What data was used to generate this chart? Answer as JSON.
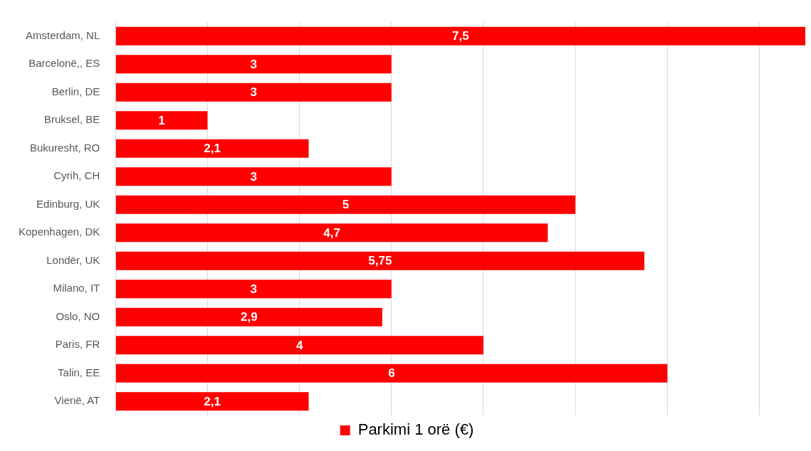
{
  "chart_data": {
    "type": "bar",
    "orientation": "horizontal",
    "categories": [
      "Amsterdam, NL",
      "Barcelonë,, ES",
      "Berlin, DE",
      "Bruksel, BE",
      "Bukuresht, RO",
      "Cyrih, CH",
      "Edinburg, UK",
      "Kopenhagen, DK",
      "Londër, UK",
      "Milano, IT",
      "Oslo, NO",
      "Paris, FR",
      "Talin, EE",
      "Vienë, AT"
    ],
    "series": [
      {
        "name": "Parkimi 1 orë (€)",
        "color": "#ff0000",
        "values": [
          7.5,
          3,
          3,
          1,
          2.1,
          3,
          5,
          4.7,
          5.75,
          3,
          2.9,
          4,
          6,
          2.1
        ],
        "value_labels": [
          "7,5",
          "3",
          "3",
          "1",
          "2,1",
          "3",
          "5",
          "4,7",
          "5,75",
          "3",
          "2,9",
          "4",
          "6",
          "2,1"
        ]
      }
    ],
    "xlim": [
      0,
      7.5
    ],
    "xticks": [
      {
        "value": 0,
        "label": null
      },
      {
        "value": 1,
        "label": null
      },
      {
        "value": 2,
        "label": null
      },
      {
        "value": 3,
        "label": null
      },
      {
        "value": 4,
        "label": null
      },
      {
        "value": 5,
        "label": null
      },
      {
        "value": 6,
        "label": null
      },
      {
        "value": 7,
        "label": null
      }
    ],
    "tick_labels": "y",
    "grid": "x",
    "legend": "bottom"
  }
}
